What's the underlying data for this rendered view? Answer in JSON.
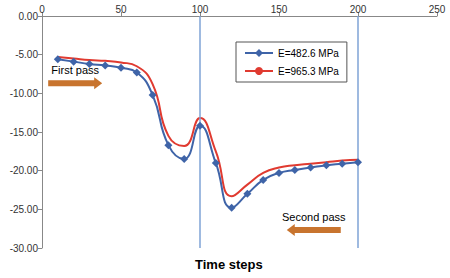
{
  "chart_data": {
    "type": "line",
    "x_label": "Time steps",
    "xlim": [
      0,
      250
    ],
    "xticks": [
      0,
      50,
      100,
      150,
      200,
      250
    ],
    "ylim": [
      -30,
      0
    ],
    "yticks": [
      {
        "value": -30,
        "label": "-30.00"
      },
      {
        "value": -25,
        "label": "-25.00"
      },
      {
        "value": -20,
        "label": "-20.00"
      },
      {
        "value": -15,
        "label": "-15.00"
      },
      {
        "value": -10,
        "label": "-10.00"
      },
      {
        "value": -5,
        "label": "-5.00"
      },
      {
        "value": 0,
        "label": "0.00"
      }
    ],
    "grid": false,
    "legend": "upper right",
    "reference_lines_x": [
      100,
      200
    ],
    "annotations": [
      {
        "text": "First pass",
        "x": 21,
        "y": -7.0,
        "arrow": "right"
      },
      {
        "text": "Second pass",
        "x": 172,
        "y": -26.0,
        "arrow": "left"
      }
    ],
    "series": [
      {
        "name": "E=482.6 MPa",
        "color": "#3f64a8",
        "marker": "diamond",
        "line_style": "smooth",
        "x": [
          10,
          20,
          30,
          40,
          50,
          60,
          70,
          80,
          90,
          100,
          110,
          120,
          130,
          140,
          150,
          160,
          170,
          180,
          190,
          200
        ],
        "values": [
          -5.6,
          -5.9,
          -6.2,
          -6.4,
          -6.7,
          -7.3,
          -10.2,
          -16.7,
          -18.5,
          -14.2,
          -19.0,
          -24.8,
          -23.0,
          -21.2,
          -20.3,
          -19.9,
          -19.6,
          -19.3,
          -19.1,
          -18.9
        ]
      },
      {
        "name": "E=965.3 MPa",
        "color": "#e03a30",
        "marker": "none",
        "line_style": "smooth",
        "x": [
          10,
          20,
          30,
          40,
          50,
          60,
          70,
          80,
          90,
          100,
          110,
          120,
          130,
          140,
          150,
          160,
          170,
          180,
          190,
          200
        ],
        "values": [
          -5.3,
          -5.5,
          -5.7,
          -5.8,
          -6.0,
          -6.5,
          -8.8,
          -15.5,
          -16.8,
          -13.2,
          -17.5,
          -23.3,
          -21.8,
          -20.3,
          -19.6,
          -19.3,
          -19.1,
          -18.9,
          -18.7,
          -18.6
        ]
      }
    ]
  }
}
